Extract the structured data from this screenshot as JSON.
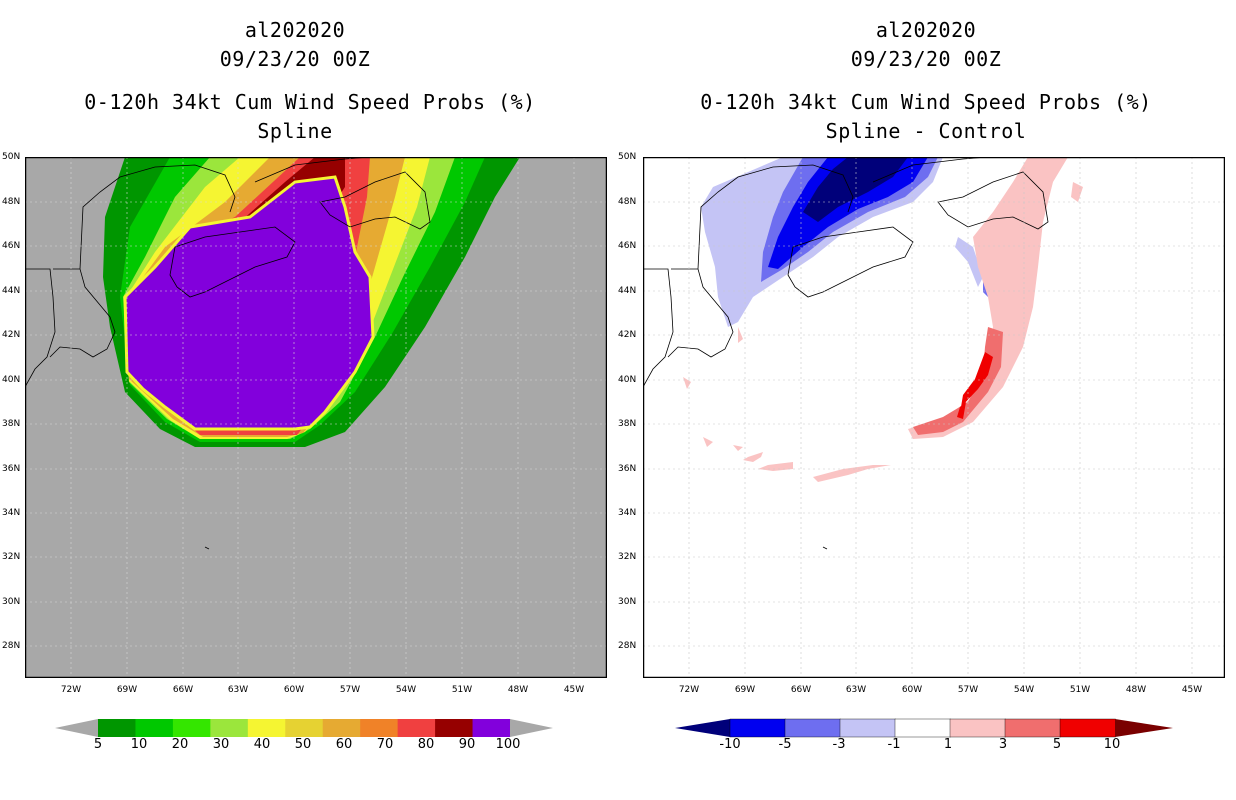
{
  "left": {
    "title_line1": "al202020",
    "title_line2": "09/23/20 00Z",
    "title_line3": "0-120h 34kt Cum Wind Speed Probs (%)",
    "title_line4": "Spline",
    "colorbar": {
      "labels": [
        "5",
        "10",
        "20",
        "30",
        "40",
        "50",
        "60",
        "70",
        "80",
        "90",
        "100"
      ],
      "colors": [
        "#009600",
        "#00c800",
        "#34e600",
        "#9be63c",
        "#f5f532",
        "#e6d232",
        "#e6aa32",
        "#f08228",
        "#f04040",
        "#960000",
        "#8200dc"
      ]
    }
  },
  "right": {
    "title_line1": "al202020",
    "title_line2": "09/23/20 00Z",
    "title_line3": "0-120h 34kt Cum Wind Speed Probs (%)",
    "title_line4": "Spline - Control",
    "colorbar": {
      "labels": [
        "-10",
        "-5",
        "-3",
        "-1",
        "1",
        "3",
        "5",
        "10"
      ],
      "colors": [
        "#00007a",
        "#0000f0",
        "#6e6ef0",
        "#c4c4f5",
        "#ffffff",
        "#fac3c3",
        "#f06e6e",
        "#f00000",
        "#7a0000"
      ]
    }
  },
  "map": {
    "lat_labels": [
      "50N",
      "48N",
      "46N",
      "44N",
      "42N",
      "40N",
      "38N",
      "36N",
      "34N",
      "32N",
      "30N",
      "28N"
    ],
    "lon_labels": [
      "72W",
      "69W",
      "66W",
      "63W",
      "60W",
      "57W",
      "54W",
      "51W",
      "48W",
      "45W"
    ]
  }
}
